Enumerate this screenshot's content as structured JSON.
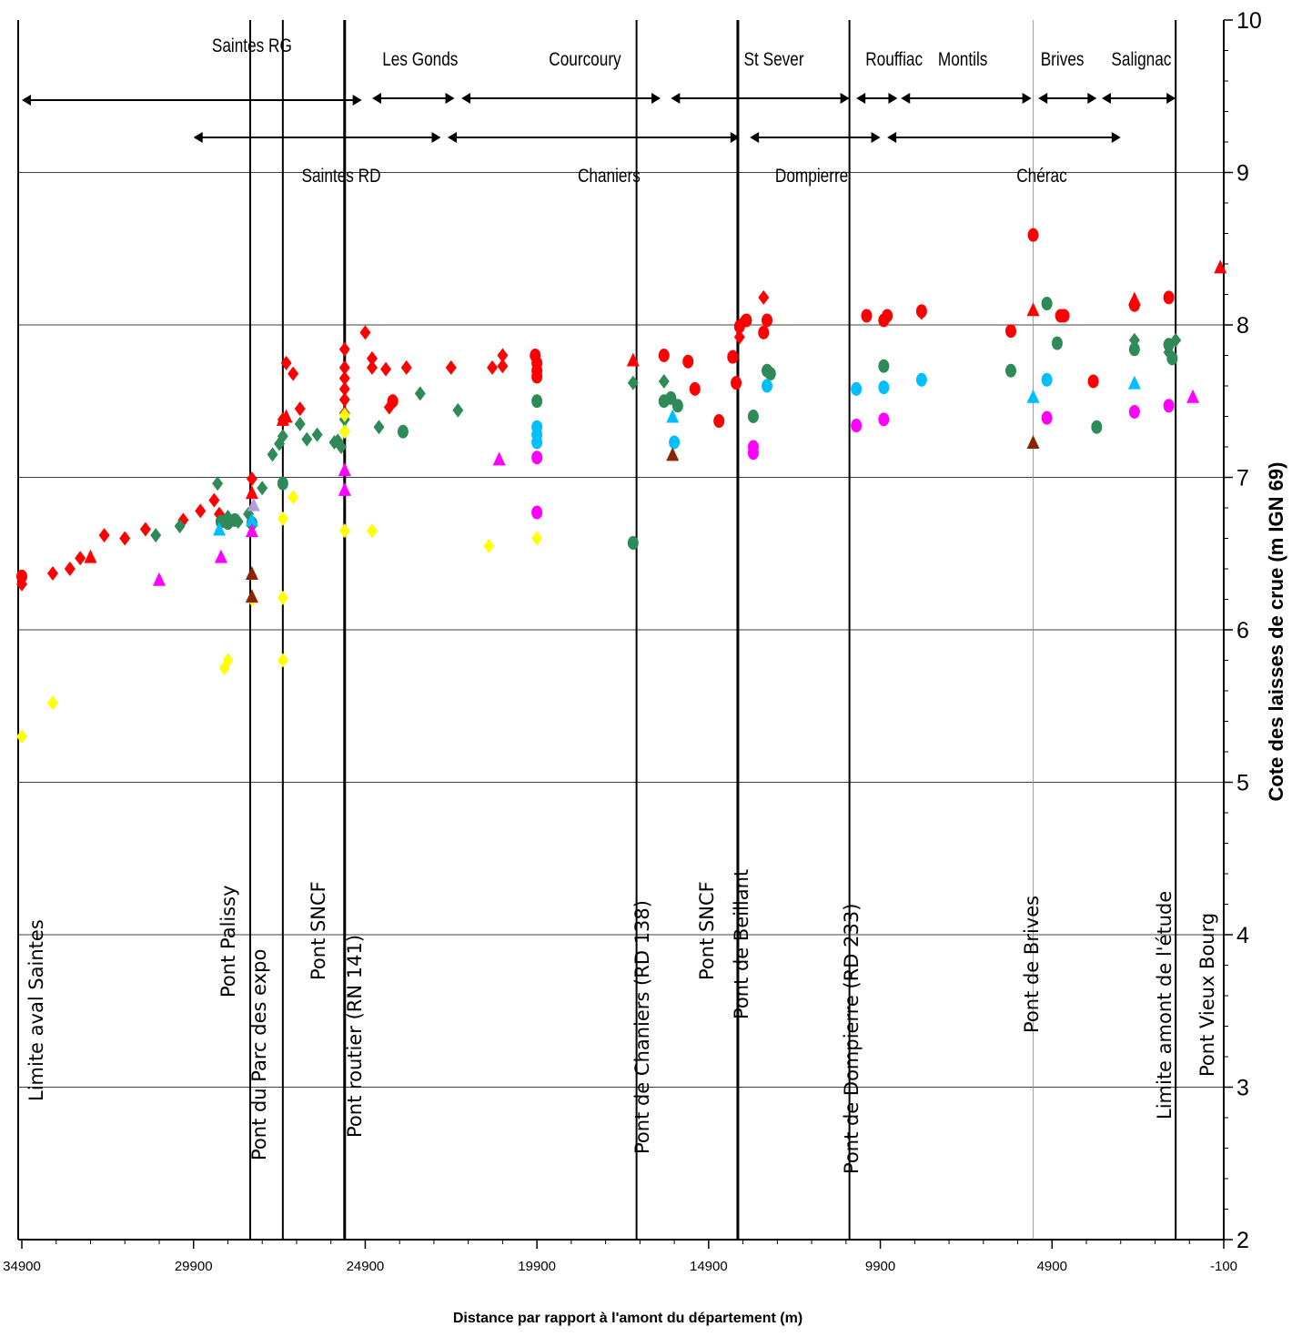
{
  "chart_data": {
    "type": "scatter",
    "title": "",
    "xlabel": "Distance par rapport à l'amont du département (m)",
    "ylabel": "Cote des laisses de crue (m IGN 69)",
    "xlim": [
      35000,
      -100
    ],
    "ylim": [
      2,
      10
    ],
    "x_reversed": true,
    "y_axis_side": "right",
    "grid": "horizontal",
    "x_ticks": [
      34900,
      29900,
      24900,
      19900,
      14900,
      9900,
      4900,
      -100
    ],
    "x_tick_labels": [
      "34900",
      "29900",
      "24900",
      "19900",
      "14900",
      "9900",
      "4900",
      "-100"
    ],
    "y_ticks": [
      2,
      3,
      4,
      5,
      6,
      7,
      8,
      9,
      10
    ],
    "y_tick_labels": [
      "2",
      "3",
      "4",
      "5",
      "6",
      "7",
      "8",
      "9",
      "10"
    ],
    "bridges": [
      {
        "x": 34900,
        "label": "Limite aval Saintes",
        "line": false
      },
      {
        "x": 28250,
        "label": "Pont Palissy",
        "line": true
      },
      {
        "x": 27300,
        "label": "Pont du Parc des expo",
        "line": true
      },
      {
        "x": 25500,
        "label": "Pont SNCF",
        "line": true,
        "bold": true
      },
      {
        "x": 25500,
        "label": "Pont routier (RN 141)",
        "line": false
      },
      {
        "x": 17000,
        "label": "Pont de Chaniers (RD 138)",
        "line": true
      },
      {
        "x": 14050,
        "label": "Pont SNCF",
        "line": true,
        "bold": true
      },
      {
        "x": 14050,
        "label": "Pont de Beillant",
        "line": false
      },
      {
        "x": 10800,
        "label": "Pont de Dompierre (RD 233)",
        "line": true
      },
      {
        "x": 5450,
        "label": "Pont de Brives",
        "line": true,
        "thin": true
      },
      {
        "x": 1300,
        "label": "Limite amont de l'étude",
        "line": true
      },
      {
        "x": 50,
        "label": "Pont Vieux Bourg",
        "line": false
      }
    ],
    "sectors_top": [
      {
        "label": "Saintes RG",
        "label_x": 28200,
        "from": 34900,
        "to": 25000
      },
      {
        "label": "Les Gonds",
        "label_x": 23300,
        "from": 24700,
        "to": 22300
      },
      {
        "label": "Courcoury",
        "label_x": 18500,
        "from": 22100,
        "to": 16300
      },
      {
        "label": "St Sever",
        "label_x": 13000,
        "from": 16000,
        "to": 10800
      },
      {
        "label": "Rouffiac",
        "label_x": 9500,
        "from": 10600,
        "to": 9400
      },
      {
        "label": "Montils",
        "label_x": 7500,
        "from": 9300,
        "to": 5500
      },
      {
        "label": "Brives",
        "label_x": 4600,
        "from": 5300,
        "to": 3600
      },
      {
        "label": "Salignac",
        "label_x": 2300,
        "from": 3450,
        "to": 1300
      }
    ],
    "sectors_bottom": [
      {
        "label": "Saintes RD",
        "label_x": 25600,
        "from": 29900,
        "to": 22700
      },
      {
        "label": "Chaniers",
        "label_x": 17800,
        "from": 22500,
        "to": 14000
      },
      {
        "label": "Dompierre",
        "label_x": 11900,
        "from": 13700,
        "to": 9900
      },
      {
        "label": "Chérac",
        "label_x": 5200,
        "from": 9700,
        "to": 2900
      }
    ],
    "series": [
      {
        "color": "#ff0000",
        "marker": "diamond",
        "points": [
          [
            34900,
            6.3
          ],
          [
            34000,
            6.37
          ],
          [
            33500,
            6.4
          ],
          [
            33200,
            6.47
          ],
          [
            32500,
            6.62
          ],
          [
            31900,
            6.6
          ],
          [
            31300,
            6.66
          ],
          [
            30200,
            6.72
          ],
          [
            29700,
            6.78
          ],
          [
            29300,
            6.85
          ],
          [
            29150,
            6.76
          ],
          [
            28200,
            6.99
          ],
          [
            27300,
            7.38
          ],
          [
            27200,
            7.75
          ],
          [
            27000,
            7.68
          ],
          [
            26800,
            7.45
          ],
          [
            25500,
            7.84
          ],
          [
            25500,
            7.72
          ],
          [
            25500,
            7.65
          ],
          [
            25500,
            7.58
          ],
          [
            25500,
            7.51
          ],
          [
            25500,
            7.42
          ],
          [
            24900,
            7.95
          ],
          [
            24700,
            7.78
          ],
          [
            24700,
            7.72
          ],
          [
            24300,
            7.71
          ],
          [
            24200,
            7.46
          ],
          [
            23700,
            7.72
          ],
          [
            22400,
            7.72
          ],
          [
            21200,
            7.72
          ],
          [
            20900,
            7.8
          ],
          [
            20900,
            7.73
          ],
          [
            14000,
            7.92
          ],
          [
            13900,
            8.02
          ],
          [
            13300,
            8.18
          ],
          [
            8700,
            8.08
          ]
        ]
      },
      {
        "color": "#ff0000",
        "marker": "circle",
        "points": [
          [
            34900,
            6.35
          ],
          [
            24100,
            7.5
          ],
          [
            19950,
            7.8
          ],
          [
            19900,
            7.75
          ],
          [
            19900,
            7.7
          ],
          [
            19900,
            7.66
          ],
          [
            16200,
            7.8
          ],
          [
            15500,
            7.76
          ],
          [
            15300,
            7.58
          ],
          [
            14600,
            7.37
          ],
          [
            14200,
            7.79
          ],
          [
            14100,
            7.62
          ],
          [
            14000,
            7.99
          ],
          [
            13800,
            8.03
          ],
          [
            13300,
            7.95
          ],
          [
            13200,
            8.03
          ],
          [
            10300,
            8.06
          ],
          [
            9800,
            8.03
          ],
          [
            9700,
            8.06
          ],
          [
            8700,
            8.09
          ],
          [
            6100,
            7.96
          ],
          [
            5450,
            8.59
          ],
          [
            4650,
            8.06
          ],
          [
            4550,
            8.06
          ],
          [
            3700,
            7.63
          ],
          [
            2500,
            8.13
          ],
          [
            1500,
            8.18
          ]
        ]
      },
      {
        "color": "#ff0000",
        "marker": "triangle",
        "points": [
          [
            32900,
            6.48
          ],
          [
            28200,
            6.9
          ],
          [
            27300,
            7.38
          ],
          [
            27200,
            7.4
          ],
          [
            17100,
            7.77
          ],
          [
            5450,
            8.1
          ],
          [
            2500,
            8.17
          ],
          [
            0,
            8.38
          ]
        ]
      },
      {
        "color": "#2e8b57",
        "marker": "diamond",
        "points": [
          [
            31000,
            6.62
          ],
          [
            30300,
            6.68
          ],
          [
            29200,
            6.96
          ],
          [
            28900,
            6.74
          ],
          [
            28600,
            6.71
          ],
          [
            28300,
            6.76
          ],
          [
            27900,
            6.93
          ],
          [
            27600,
            7.15
          ],
          [
            27400,
            7.22
          ],
          [
            27300,
            7.27
          ],
          [
            26800,
            7.35
          ],
          [
            26600,
            7.25
          ],
          [
            26300,
            7.28
          ],
          [
            25800,
            7.23
          ],
          [
            25700,
            7.24
          ],
          [
            25600,
            7.2
          ],
          [
            25500,
            7.3
          ],
          [
            25500,
            7.38
          ],
          [
            24500,
            7.33
          ],
          [
            23300,
            7.55
          ],
          [
            22200,
            7.44
          ],
          [
            17100,
            7.62
          ],
          [
            16200,
            7.63
          ],
          [
            2500,
            7.9
          ],
          [
            1500,
            7.82
          ],
          [
            1300,
            7.9
          ]
        ]
      },
      {
        "color": "#2e8b57",
        "marker": "circle",
        "points": [
          [
            29100,
            6.71
          ],
          [
            28900,
            6.7
          ],
          [
            28700,
            6.72
          ],
          [
            28200,
            6.7
          ],
          [
            27300,
            6.96
          ],
          [
            23800,
            7.3
          ],
          [
            19900,
            7.5
          ],
          [
            17100,
            6.57
          ],
          [
            16200,
            7.5
          ],
          [
            16000,
            7.52
          ],
          [
            15800,
            7.47
          ],
          [
            13600,
            7.4
          ],
          [
            13200,
            7.7
          ],
          [
            13100,
            7.68
          ],
          [
            9800,
            7.73
          ],
          [
            6100,
            7.7
          ],
          [
            5050,
            8.14
          ],
          [
            4750,
            7.88
          ],
          [
            3600,
            7.33
          ],
          [
            2500,
            7.84
          ],
          [
            1500,
            7.87
          ],
          [
            1400,
            7.78
          ]
        ]
      },
      {
        "color": "#00bfff",
        "marker": "circle",
        "points": [
          [
            19900,
            7.33
          ],
          [
            19900,
            7.28
          ],
          [
            19900,
            7.23
          ],
          [
            15900,
            7.23
          ],
          [
            13200,
            7.6
          ],
          [
            10600,
            7.58
          ],
          [
            9800,
            7.59
          ],
          [
            8700,
            7.64
          ],
          [
            5050,
            7.64
          ]
        ]
      },
      {
        "color": "#00bfff",
        "marker": "triangle",
        "points": [
          [
            29150,
            6.66
          ],
          [
            28200,
            6.72
          ],
          [
            15950,
            7.4
          ],
          [
            5450,
            7.53
          ],
          [
            2500,
            7.62
          ]
        ]
      },
      {
        "color": "#ff00ff",
        "marker": "triangle",
        "points": [
          [
            30900,
            6.33
          ],
          [
            29100,
            6.48
          ],
          [
            28200,
            6.65
          ],
          [
            25500,
            7.05
          ],
          [
            25500,
            6.92
          ],
          [
            21000,
            7.12
          ]
        ]
      },
      {
        "color": "#ff00ff",
        "marker": "circle",
        "points": [
          [
            19900,
            7.13
          ],
          [
            19900,
            6.77
          ],
          [
            13600,
            7.2
          ],
          [
            13600,
            7.16
          ],
          [
            10600,
            7.34
          ],
          [
            9800,
            7.38
          ],
          [
            5050,
            7.39
          ],
          [
            2500,
            7.43
          ],
          [
            1500,
            7.47
          ]
        ]
      },
      {
        "color": "#ff00ff",
        "marker": "triangle",
        "points": [
          [
            800,
            7.53
          ]
        ]
      },
      {
        "color": "#b39ddb",
        "marker": "triangle",
        "points": [
          [
            28150,
            6.82
          ]
        ]
      },
      {
        "color": "#ffff00",
        "marker": "diamond",
        "points": [
          [
            34900,
            5.3
          ],
          [
            34000,
            5.52
          ],
          [
            29000,
            5.75
          ],
          [
            28900,
            5.8
          ],
          [
            28200,
            6.2
          ],
          [
            27300,
            6.73
          ],
          [
            27300,
            6.21
          ],
          [
            27300,
            5.8
          ],
          [
            27000,
            6.87
          ],
          [
            25500,
            7.41
          ],
          [
            25500,
            7.3
          ],
          [
            25500,
            6.65
          ],
          [
            24700,
            6.65
          ],
          [
            21300,
            6.55
          ],
          [
            19900,
            6.6
          ]
        ]
      },
      {
        "color": "#8b2500",
        "marker": "triangle",
        "points": [
          [
            28200,
            6.37
          ],
          [
            28200,
            6.22
          ],
          [
            15950,
            7.15
          ],
          [
            5450,
            7.23
          ]
        ]
      }
    ]
  }
}
